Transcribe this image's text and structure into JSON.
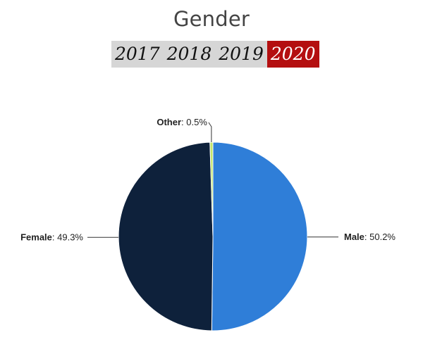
{
  "page": {
    "title": "Gender"
  },
  "year_tabs": [
    {
      "label": "2017",
      "active": false
    },
    {
      "label": "2018",
      "active": false
    },
    {
      "label": "2019",
      "active": false
    },
    {
      "label": "2020",
      "active": true
    }
  ],
  "colors": {
    "active_tab": "#b40f10",
    "tab_bar": "#d6d6d6"
  },
  "chart_data": {
    "type": "pie",
    "title": "Gender",
    "legend": "none",
    "slices": [
      {
        "name": "Male",
        "value": 50.2,
        "value_label": "50.2%",
        "color": "#2f7ed8"
      },
      {
        "name": "Female",
        "value": 49.3,
        "value_label": "49.3%",
        "color": "#0e213b"
      },
      {
        "name": "Other",
        "value": 0.5,
        "value_label": "0.5%",
        "color": "#c2e66a"
      }
    ]
  }
}
